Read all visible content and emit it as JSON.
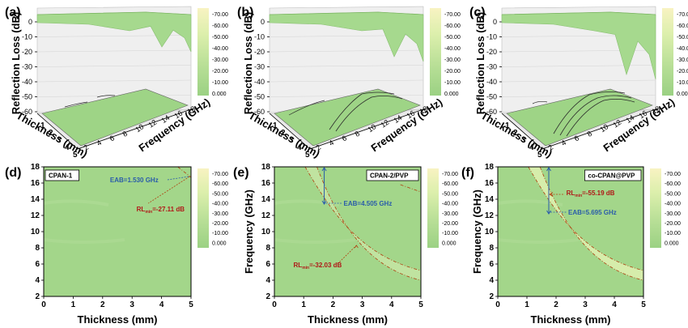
{
  "panel_labels": [
    "(a)",
    "(b)",
    "(c)",
    "(d)",
    "(e)",
    "(f)"
  ],
  "colorbar": {
    "ticks": [
      "-70.00",
      "-60.00",
      "-50.00",
      "-40.00",
      "-30.00",
      "-20.00",
      "-10.00",
      "0.000"
    ],
    "colors": [
      "#f7f2bf",
      "#eef0b6",
      "#dff0ad",
      "#cfeba2",
      "#bfe49a",
      "#afdb91",
      "#a3d68a",
      "#9bd183"
    ]
  },
  "colors": {
    "surface": "#a3d68a",
    "contour": "#2a2a2a",
    "dashed": "#b04010",
    "eab_arrow": "#2a5caa",
    "eab_text": "#2a5caa",
    "rl_text": "#b01818"
  },
  "surface3d": {
    "z_label": "Reflection Loss (dB)",
    "x_label": "Thickness (mm)",
    "y_label": "Frequency (GHz)",
    "z_ticks": [
      "0",
      "-10",
      "-20",
      "-30",
      "-40",
      "-50",
      "-60"
    ],
    "x_ticks": [
      "1",
      "2",
      "3",
      "4",
      "5"
    ],
    "y_ticks": [
      "2",
      "4",
      "6",
      "8",
      "10",
      "12",
      "14",
      "16",
      "18"
    ]
  },
  "contour2d": {
    "x_label": "Thickness (mm)",
    "y_label": "Frequency (GHz)",
    "x_ticks": [
      "0",
      "1",
      "2",
      "3",
      "4",
      "5"
    ],
    "y_ticks": [
      "2",
      "4",
      "6",
      "8",
      "10",
      "12",
      "14",
      "16",
      "18"
    ],
    "panels": [
      {
        "name": "CPAN-1",
        "eab": "EAB=1.530 GHz",
        "rl_prefix": "RL",
        "rl_sub": "min",
        "rl_value": "=-27.11 dB"
      },
      {
        "name": "CPAN-2/PVP",
        "eab": "EAB=4.505 GHz",
        "rl_prefix": "RL",
        "rl_sub": "min",
        "rl_value": "=-32.03 dB"
      },
      {
        "name": "co-CPAN@PVP",
        "eab": "EAB=5.695 GHz",
        "rl_prefix": "RL",
        "rl_sub": "min",
        "rl_value": "=-55.19 dB"
      }
    ]
  },
  "chart_data": [
    {
      "type": "surface",
      "panel": "(a)",
      "zlabel": "Reflection Loss (dB)",
      "xlabel": "Thickness (mm)",
      "ylabel": "Frequency (GHz)",
      "zlim": [
        -60,
        0
      ],
      "xlim": [
        1,
        5
      ],
      "ylim": [
        2,
        18
      ],
      "rl_min": -27.11
    },
    {
      "type": "surface",
      "panel": "(b)",
      "zlabel": "Reflection Loss (dB)",
      "xlabel": "Thickness (mm)",
      "ylabel": "Frequency (GHz)",
      "zlim": [
        -60,
        0
      ],
      "xlim": [
        1,
        5
      ],
      "ylim": [
        2,
        18
      ],
      "rl_min": -32.03
    },
    {
      "type": "surface",
      "panel": "(c)",
      "zlabel": "Reflection Loss (dB)",
      "xlabel": "Thickness (mm)",
      "ylabel": "Frequency (GHz)",
      "zlim": [
        -60,
        0
      ],
      "xlim": [
        1,
        5
      ],
      "ylim": [
        2,
        18
      ],
      "rl_min": -55.19
    },
    {
      "type": "heatmap",
      "panel": "(d)",
      "name": "CPAN-1",
      "xlabel": "Thickness (mm)",
      "ylabel": "Frequency (GHz)",
      "xlim": [
        0,
        5
      ],
      "ylim": [
        2,
        18
      ],
      "eab_ghz": 1.53,
      "rl_min_db": -27.11,
      "rl_min_at": {
        "x": 4.9,
        "y": 16.5
      }
    },
    {
      "type": "heatmap",
      "panel": "(e)",
      "name": "CPAN-2/PVP",
      "xlabel": "Thickness (mm)",
      "ylabel": "Frequency (GHz)",
      "xlim": [
        0,
        5
      ],
      "ylim": [
        2,
        18
      ],
      "eab_ghz": 4.505,
      "rl_min_db": -32.03,
      "rl_min_at": {
        "x": 2.8,
        "y": 8.6
      },
      "eab_range": {
        "x": 1.7,
        "y": [
          13.4,
          17.9
        ]
      }
    },
    {
      "type": "heatmap",
      "panel": "(f)",
      "name": "co-CPAN@PVP",
      "xlabel": "Thickness (mm)",
      "ylabel": "Frequency (GHz)",
      "xlim": [
        0,
        5
      ],
      "ylim": [
        2,
        18
      ],
      "eab_ghz": 5.695,
      "rl_min_db": -55.19,
      "rl_min_at": {
        "x": 1.75,
        "y": 14.6
      },
      "eab_range": {
        "x": 1.75,
        "y": [
          12.2,
          17.9
        ]
      }
    }
  ]
}
